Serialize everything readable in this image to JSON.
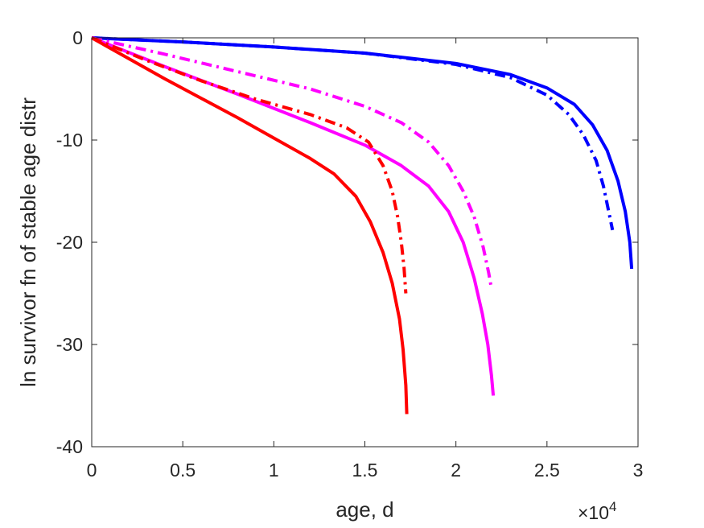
{
  "chart_data": {
    "type": "line",
    "xlabel": "age, d",
    "ylabel": "ln survivor fn of stable age distr",
    "x_multiplier": "×10",
    "x_multiplier_exp": "4",
    "xlim": [
      0,
      30000
    ],
    "ylim": [
      -40,
      0
    ],
    "xticks": [
      0,
      5000,
      10000,
      15000,
      20000,
      25000,
      30000
    ],
    "xtick_labels": [
      "0",
      "0.5",
      "1",
      "1.5",
      "2",
      "2.5",
      "3"
    ],
    "yticks": [
      0,
      -10,
      -20,
      -30,
      -40
    ],
    "ytick_labels": [
      "0",
      "-10",
      "-20",
      "-30",
      "-40"
    ],
    "grid": false,
    "series": [
      {
        "color": "#0000ff",
        "dash": "solid",
        "x": [
          0,
          5000,
          10000,
          15000,
          20000,
          23000,
          25000,
          26500,
          27500,
          28300,
          28900,
          29300,
          29550,
          29650
        ],
        "y": [
          0,
          -0.4,
          -0.9,
          -1.5,
          -2.5,
          -3.6,
          -4.9,
          -6.5,
          -8.5,
          -11,
          -14,
          -17,
          -20,
          -22.6
        ]
      },
      {
        "color": "#0000ff",
        "dash": "dashdot",
        "x": [
          0,
          5000,
          10000,
          15000,
          20000,
          23000,
          25000,
          26200,
          27000,
          27700,
          28100,
          28450,
          28600
        ],
        "y": [
          0,
          -0.4,
          -0.9,
          -1.5,
          -2.6,
          -3.9,
          -5.6,
          -7.5,
          -9.5,
          -12,
          -14.5,
          -17.5,
          -18.8
        ]
      },
      {
        "color": "#ff00ff",
        "dash": "solid",
        "x": [
          0,
          4000,
          8000,
          12000,
          15000,
          17000,
          18500,
          19600,
          20400,
          21000,
          21450,
          21750,
          21950,
          22050
        ],
        "y": [
          0,
          -2.8,
          -5.5,
          -8.3,
          -10.5,
          -12.5,
          -14.5,
          -17,
          -20,
          -23.5,
          -27,
          -30,
          -33,
          -35
        ]
      },
      {
        "color": "#ff00ff",
        "dash": "dashdot",
        "x": [
          0,
          4000,
          8000,
          12000,
          15000,
          17000,
          18500,
          19600,
          20400,
          21000,
          21500,
          21800,
          21950
        ],
        "y": [
          0,
          -1.6,
          -3.3,
          -5,
          -6.7,
          -8.3,
          -10.2,
          -12.5,
          -15,
          -17.5,
          -20.5,
          -23,
          -24.5
        ]
      },
      {
        "color": "#ff0000",
        "dash": "solid",
        "x": [
          0,
          4000,
          8000,
          10000,
          12000,
          13300,
          14500,
          15300,
          16000,
          16500,
          16900,
          17100,
          17250,
          17300
        ],
        "y": [
          0,
          -4,
          -7.8,
          -9.8,
          -11.8,
          -13.3,
          -15.5,
          -18,
          -21,
          -24,
          -27.5,
          -30.5,
          -34,
          -36.8
        ]
      },
      {
        "color": "#ff0000",
        "dash": "dashdot",
        "x": [
          0,
          3000,
          6000,
          9000,
          12000,
          14000,
          15200,
          16000,
          16500,
          16800,
          17000,
          17150,
          17250
        ],
        "y": [
          0,
          -2.2,
          -4.2,
          -6,
          -7.5,
          -8.8,
          -10.2,
          -12.5,
          -15,
          -17.5,
          -20,
          -22.5,
          -25
        ]
      }
    ]
  }
}
